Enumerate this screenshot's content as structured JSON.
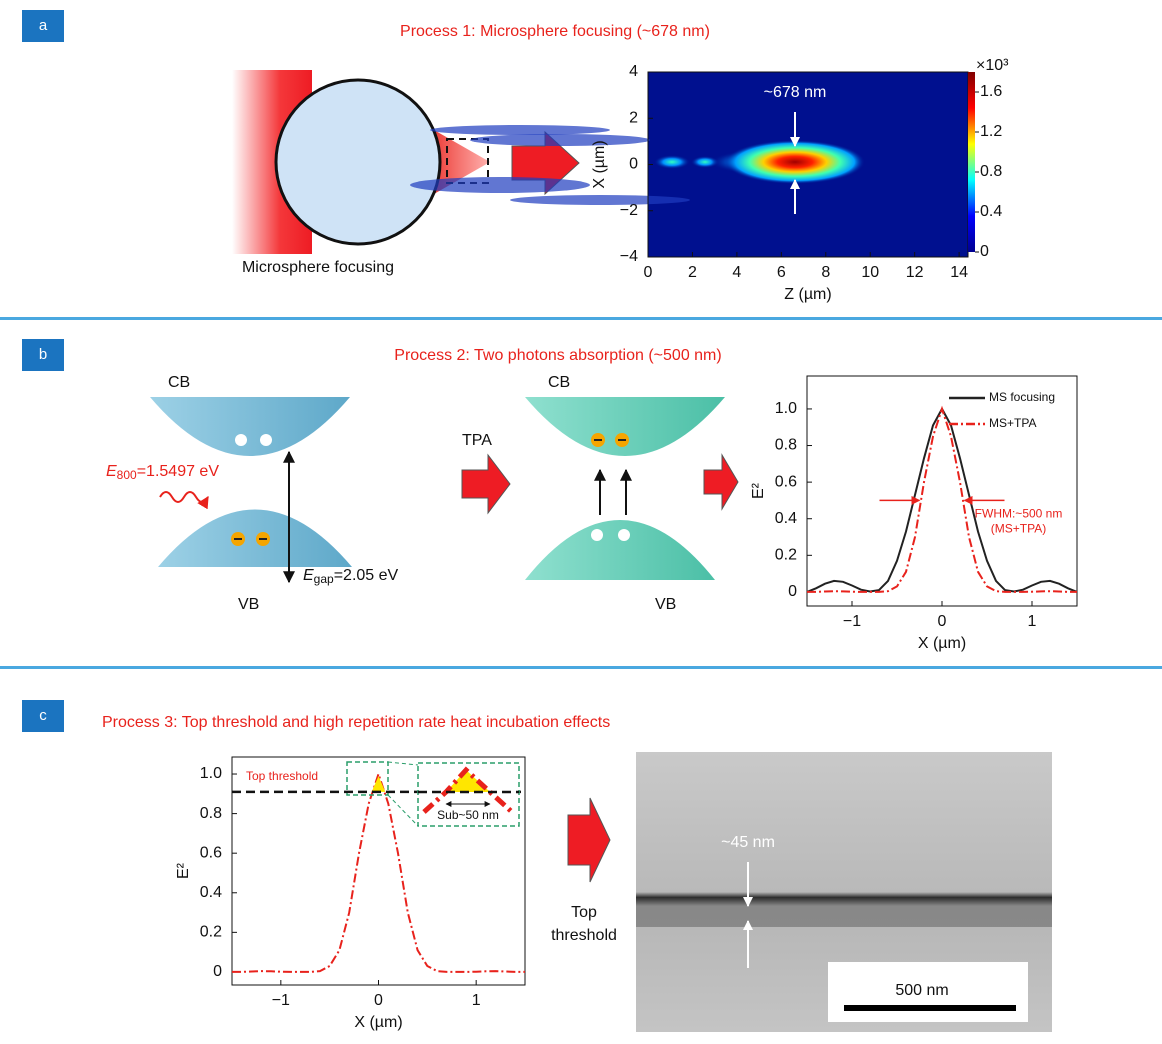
{
  "panels": [
    {
      "label": "a",
      "title": "Process 1: Microsphere focusing (~678 nm)",
      "caption": "Microsphere focusing"
    },
    {
      "label": "b",
      "title": "Process 2: Two photons absorption (~500 nm)",
      "diagram": {
        "cb_left": "CB",
        "vb_left": "VB",
        "cb_right": "CB",
        "vb_right": "VB",
        "photon": {
          "symbol": "E",
          "sub": "800",
          "text": "=1.5497 eV"
        },
        "gap": {
          "symbol": "E",
          "sub": "gap",
          "text": "=2.05 eV"
        },
        "arrow_label": "TPA"
      }
    },
    {
      "label": "c",
      "title": "Process 3: Top threshold and high repetition rate heat incubation effects",
      "arrow_label": [
        "Top",
        "threshold"
      ],
      "image": {
        "annotation": "~45 nm",
        "scale_bar": "500 nm"
      }
    }
  ],
  "chart_data": [
    {
      "type": "heatmap",
      "xlabel": "Z (µm)",
      "ylabel": "X (µm)",
      "annotation": "~678 nm",
      "xlim": [
        0,
        14.4
      ],
      "ylim": [
        -4,
        4
      ],
      "xticks": [
        0,
        2,
        4,
        6,
        8,
        10,
        12,
        14
      ],
      "yticks": [
        {
          "value": -4,
          "label": "−4"
        },
        {
          "value": -2,
          "label": "−2"
        },
        0,
        2,
        4
      ],
      "colorbar": {
        "lim": [
          0,
          1.8
        ],
        "ticks": [
          0,
          0.4,
          0.8,
          1.2,
          1.6
        ],
        "label": "×10³"
      }
    },
    {
      "type": "line",
      "xlabel": "X (µm)",
      "ylabel": "E²",
      "xlim": [
        -1.5,
        1.5
      ],
      "ylim": [
        -0.077,
        1.18
      ],
      "xticks": [
        {
          "value": -1,
          "label": "−1"
        },
        0,
        1
      ],
      "yticks": [
        0,
        0.2,
        0.4,
        0.6,
        0.8,
        {
          "value": 1,
          "label": "1.0"
        }
      ],
      "annotation": [
        "FWHM:~500 nm",
        "(MS+TPA)"
      ],
      "x": [
        -1.5,
        -1.4,
        -1.3,
        -1.2,
        -1.1,
        -1.0,
        -0.9,
        -0.8,
        -0.7,
        -0.6,
        -0.5,
        -0.4,
        -0.3,
        -0.2,
        -0.1,
        0,
        0.1,
        0.2,
        0.3,
        0.4,
        0.5,
        0.6,
        0.7,
        0.8,
        0.9,
        1.0,
        1.1,
        1.2,
        1.3,
        1.4,
        1.5
      ],
      "series": [
        {
          "name": "MS focusing",
          "color": "#222222",
          "style": "solid",
          "values": [
            0,
            0.02,
            0.045,
            0.06,
            0.055,
            0.035,
            0.012,
            0.002,
            0.01,
            0.06,
            0.17,
            0.33,
            0.53,
            0.73,
            0.91,
            1.0,
            0.91,
            0.73,
            0.53,
            0.33,
            0.17,
            0.06,
            0.01,
            0.002,
            0.012,
            0.035,
            0.055,
            0.06,
            0.045,
            0.02,
            0
          ]
        },
        {
          "name": "MS+TPA",
          "color": "#e8221c",
          "style": "dashdot",
          "values": [
            0,
            0,
            0.002,
            0.004,
            0.003,
            0.001,
            0,
            0,
            0,
            0.004,
            0.03,
            0.11,
            0.3,
            0.6,
            0.85,
            1.0,
            0.85,
            0.6,
            0.3,
            0.11,
            0.03,
            0.004,
            0,
            0,
            0,
            0.001,
            0.003,
            0.004,
            0.002,
            0,
            0
          ]
        }
      ]
    },
    {
      "type": "line",
      "xlabel": "X (µm)",
      "ylabel": "E²",
      "xlim": [
        -1.5,
        1.5
      ],
      "ylim": [
        -0.066,
        1.086
      ],
      "xticks": [
        {
          "value": -1,
          "label": "−1"
        },
        0,
        1
      ],
      "yticks": [
        0,
        0.2,
        0.4,
        0.6,
        0.8,
        {
          "value": 1,
          "label": "1.0"
        }
      ],
      "threshold": 0.91,
      "threshold_label": "Top threshold",
      "inset_label": "Sub~50 nm",
      "x": [
        -1.5,
        -1.4,
        -1.3,
        -1.2,
        -1.1,
        -1.0,
        -0.9,
        -0.8,
        -0.7,
        -0.6,
        -0.5,
        -0.4,
        -0.3,
        -0.2,
        -0.1,
        0,
        0.1,
        0.2,
        0.3,
        0.4,
        0.5,
        0.6,
        0.7,
        0.8,
        0.9,
        1.0,
        1.1,
        1.2,
        1.3,
        1.4,
        1.5
      ],
      "series": [
        {
          "color": "#e8221c",
          "style": "dashdot",
          "values": [
            0,
            0,
            0.002,
            0.004,
            0.003,
            0.001,
            0,
            0,
            0,
            0.004,
            0.03,
            0.11,
            0.3,
            0.6,
            0.85,
            1.0,
            0.85,
            0.6,
            0.3,
            0.11,
            0.03,
            0.004,
            0,
            0,
            0,
            0.001,
            0.003,
            0.004,
            0.002,
            0,
            0
          ]
        }
      ]
    }
  ]
}
